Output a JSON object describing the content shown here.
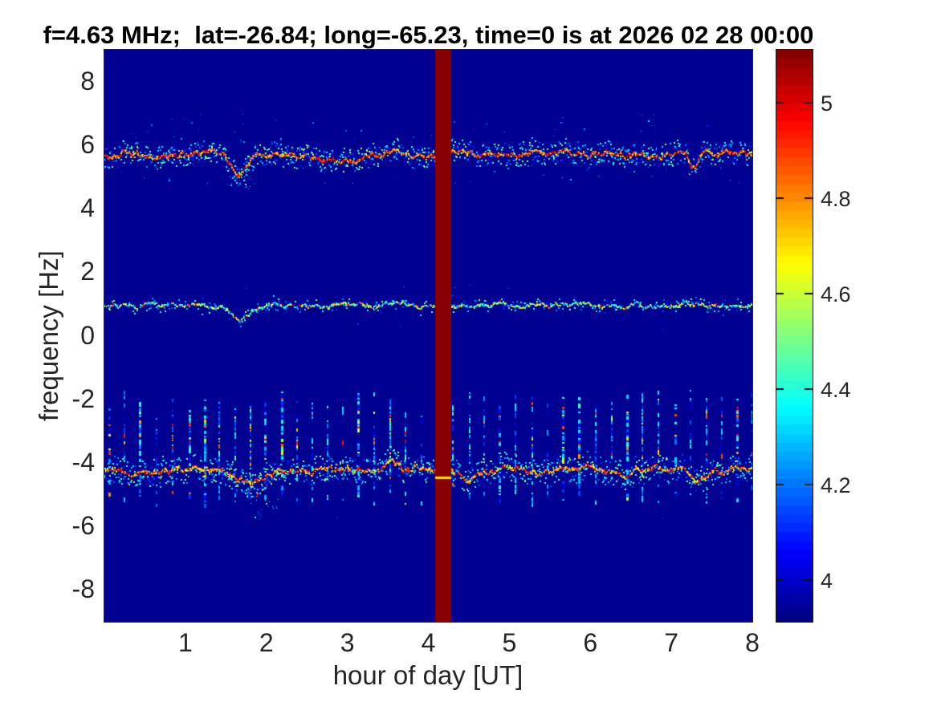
{
  "chart_data": {
    "type": "heatmap",
    "title": "f=4.63 MHz;  lat=-26.84; long=-65.23, time=0 is at 2026 02 28 00:00",
    "xlabel": "hour of day [UT]",
    "ylabel": "frequency [Hz]",
    "xlim": [
      0,
      8
    ],
    "ylim": [
      -9,
      9
    ],
    "xticks": [
      1,
      2,
      3,
      4,
      5,
      6,
      7,
      8
    ],
    "yticks": [
      8,
      6,
      4,
      2,
      0,
      -2,
      -4,
      -6,
      -8
    ],
    "grid": false,
    "colorbar": {
      "position": "right",
      "colormap": "jet",
      "vmin": 3.91,
      "vmax": 5.11,
      "ticks": [
        5,
        4.8,
        4.6,
        4.4,
        4.2,
        4
      ],
      "levels": 64
    },
    "background_value": 3.93,
    "gap_band": {
      "x_start": 4.08,
      "x_end": 4.28,
      "value": 5.1,
      "marker_y": -4.45,
      "marker_value": 4.7
    },
    "traces": [
      {
        "name": "upper-sideband",
        "base_freq": 5.72,
        "jitter": 0.1,
        "density": 0.95,
        "core_range": [
          4.65,
          5.11
        ],
        "accent_prob": 0,
        "accent_range": [
          4.9,
          5.1
        ],
        "halo_prob": 0.85,
        "halo_spread": 0.35,
        "dips": [
          [
            1.62,
            0.8,
            0.13
          ],
          [
            2.85,
            0.22,
            0.5
          ],
          [
            3.55,
            -0.25,
            0.08
          ],
          [
            7.25,
            0.5,
            0.07
          ]
        ]
      },
      {
        "name": "carrier",
        "base_freq": 0.95,
        "jitter": 0.07,
        "density": 0.72,
        "core_range": [
          4.2,
          4.75
        ],
        "accent_prob": 0.08,
        "accent_range": [
          4.85,
          5.1
        ],
        "halo_prob": 0.25,
        "halo_spread": 0.2,
        "dips": [
          [
            1.62,
            0.55,
            0.12
          ],
          [
            3.5,
            -0.15,
            0.1
          ]
        ]
      },
      {
        "name": "lower-sideband",
        "base_freq": -4.22,
        "jitter": 0.12,
        "density": 0.95,
        "core_range": [
          4.55,
          5.11
        ],
        "accent_prob": 0,
        "accent_range": [
          4.9,
          5.1
        ],
        "halo_prob": 0.9,
        "halo_spread": 0.4,
        "dips": [
          [
            1.75,
            0.5,
            0.2
          ],
          [
            3.5,
            -0.3,
            0.15
          ],
          [
            4.45,
            0.28,
            0.15
          ],
          [
            7.3,
            0.4,
            0.1
          ]
        ],
        "branch": {
          "x0": 1.45,
          "x1": 2.25,
          "xc": 1.82,
          "depth": 0.85,
          "w": 0.25,
          "prob": 0.5
        }
      }
    ],
    "stripes": {
      "x_start": 0.055,
      "x_end": 8.0,
      "spacing": 0.195,
      "y_top": -1.7,
      "y_bottom": -5.35,
      "value_range": [
        4.02,
        4.45
      ],
      "hot_value_range": [
        4.55,
        5.05
      ],
      "hot_prob": 0.16
    },
    "specks": [
      [
        0,
        8,
        5.9,
        7.0,
        90,
        3.97,
        4.35
      ],
      [
        0,
        8,
        4.8,
        5.6,
        70,
        3.97,
        4.4
      ],
      [
        1.5,
        1.85,
        4.55,
        5.35,
        30,
        4.05,
        4.5
      ],
      [
        1.8,
        2.15,
        -5.75,
        -4.95,
        22,
        4.0,
        4.55
      ],
      [
        0,
        8,
        0.2,
        1.6,
        30,
        3.97,
        4.35
      ],
      [
        6.7,
        7.15,
        6.3,
        7.0,
        6,
        4.0,
        4.4
      ],
      [
        0,
        8,
        -5.6,
        -6.4,
        20,
        3.95,
        4.12
      ]
    ],
    "seed": 1337
  }
}
